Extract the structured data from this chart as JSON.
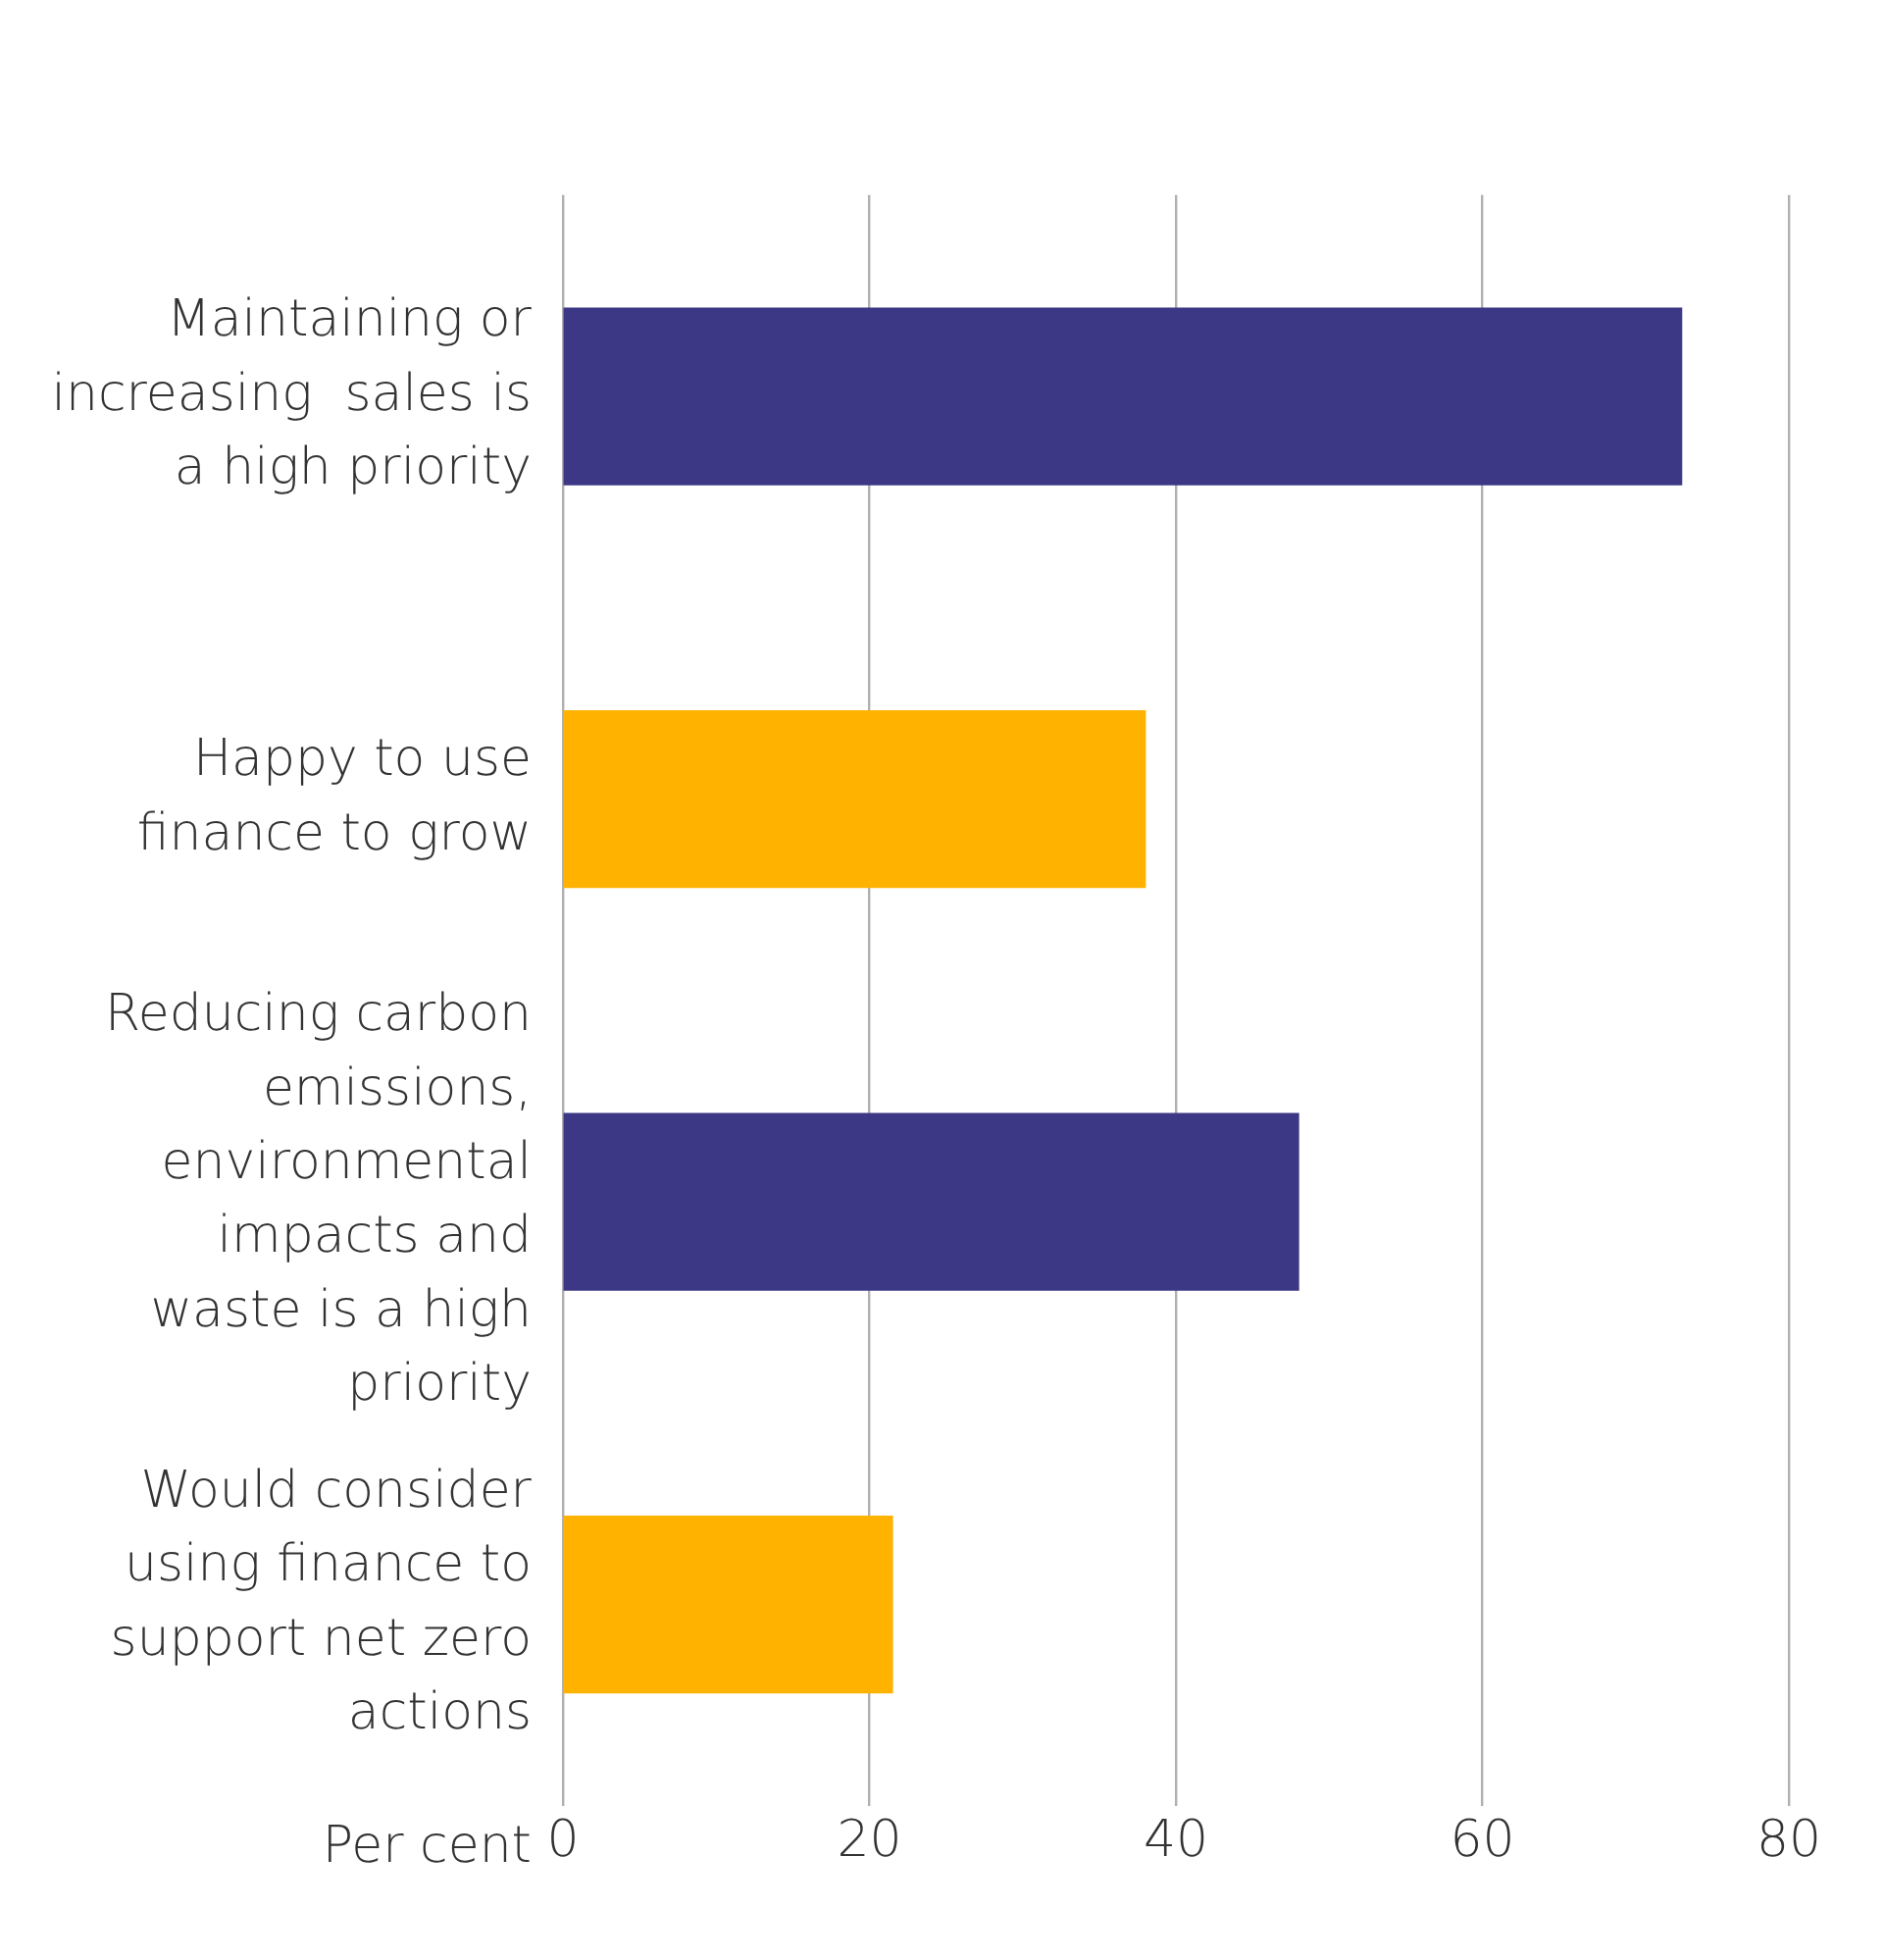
{
  "chart_data": {
    "type": "bar",
    "orientation": "horizontal",
    "xlabel": "Per cent",
    "categories": [
      "Maintaining or increasing  sales is a high priority",
      "Happy to use finance to grow",
      "Reducing carbon emissions, environmental impacts and waste is a high priority",
      "Would consider using finance to support net zero actions"
    ],
    "values": [
      73,
      38,
      48,
      21.5
    ],
    "colors": [
      "#3c3886",
      "#ffb300",
      "#3c3886",
      "#ffb300"
    ],
    "xlim": [
      0,
      80
    ],
    "xticks": [
      0,
      20,
      40,
      60,
      80
    ],
    "grid": "x",
    "legend": false
  }
}
